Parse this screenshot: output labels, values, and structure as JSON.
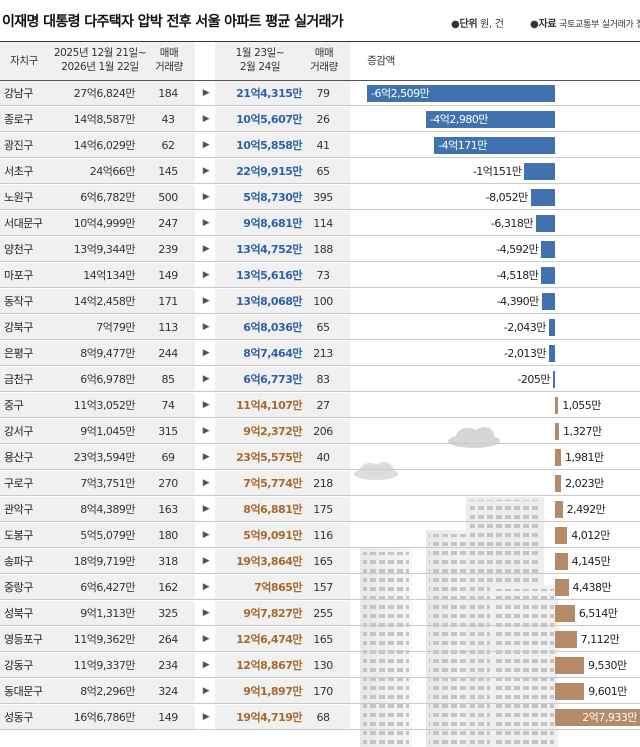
{
  "header": {
    "title": "이재명 대통령 다주택자 압박 전후 서울 아파트 평균 실거래가",
    "unit_label": "단위",
    "unit_value": "원, 건",
    "source_label": "자료",
    "source_value": "국토교통부 실거래가 정보"
  },
  "columns": {
    "district": "자치구",
    "before_line1": "2025년 12월 21일~",
    "before_line2": "2026년 1월 22일",
    "vol_line1": "매매",
    "vol_line2": "거래량",
    "after_line1": "1월 23일~",
    "after_line2": "2월 24일",
    "vol2_line1": "매매",
    "vol2_line2": "거래량",
    "change": "증감액"
  },
  "colors": {
    "negative": "#3f72ae",
    "positive": "#b58a68",
    "negative_text": "#2f62a5",
    "positive_text": "#a56a32"
  },
  "chart_data": {
    "type": "table",
    "title": "이재명 대통령 다주택자 압박 전후 서울 아파트 평균 실거래가",
    "unit": "원, 건",
    "arrow": "▶",
    "rows": [
      {
        "district": "강남구",
        "before": "27억6,824만",
        "vol_before": "184",
        "after": "21억4,315만",
        "vol_after": "79",
        "change": "-6억2,509만",
        "change_value": -62509
      },
      {
        "district": "종로구",
        "before": "14억8,587만",
        "vol_before": "43",
        "after": "10억5,607만",
        "vol_after": "26",
        "change": "-4억2,980만",
        "change_value": -42980
      },
      {
        "district": "광진구",
        "before": "14억6,029만",
        "vol_before": "62",
        "after": "10억5,858만",
        "vol_after": "41",
        "change": "-4억171만",
        "change_value": -40171
      },
      {
        "district": "서초구",
        "before": "24억66만",
        "vol_before": "145",
        "after": "22억9,915만",
        "vol_after": "65",
        "change": "-1억151만",
        "change_value": -10151
      },
      {
        "district": "노원구",
        "before": "6억6,782만",
        "vol_before": "500",
        "after": "5억8,730만",
        "vol_after": "395",
        "change": "-8,052만",
        "change_value": -8052
      },
      {
        "district": "서대문구",
        "before": "10억4,999만",
        "vol_before": "247",
        "after": "9억8,681만",
        "vol_after": "114",
        "change": "-6,318만",
        "change_value": -6318
      },
      {
        "district": "양천구",
        "before": "13억9,344만",
        "vol_before": "239",
        "after": "13억4,752만",
        "vol_after": "188",
        "change": "-4,592만",
        "change_value": -4592
      },
      {
        "district": "마포구",
        "before": "14억134만",
        "vol_before": "149",
        "after": "13억5,616만",
        "vol_after": "73",
        "change": "-4,518만",
        "change_value": -4518
      },
      {
        "district": "동작구",
        "before": "14억2,458만",
        "vol_before": "171",
        "after": "13억8,068만",
        "vol_after": "100",
        "change": "-4,390만",
        "change_value": -4390
      },
      {
        "district": "강북구",
        "before": "7억79만",
        "vol_before": "113",
        "after": "6억8,036만",
        "vol_after": "65",
        "change": "-2,043만",
        "change_value": -2043
      },
      {
        "district": "은평구",
        "before": "8억9,477만",
        "vol_before": "244",
        "after": "8억7,464만",
        "vol_after": "213",
        "change": "-2,013만",
        "change_value": -2013
      },
      {
        "district": "금천구",
        "before": "6억6,978만",
        "vol_before": "85",
        "after": "6억6,773만",
        "vol_after": "83",
        "change": "-205만",
        "change_value": -205
      },
      {
        "district": "중구",
        "before": "11억3,052만",
        "vol_before": "74",
        "after": "11억4,107만",
        "vol_after": "27",
        "change": "1,055만",
        "change_value": 1055
      },
      {
        "district": "강서구",
        "before": "9억1,045만",
        "vol_before": "315",
        "after": "9억2,372만",
        "vol_after": "206",
        "change": "1,327만",
        "change_value": 1327
      },
      {
        "district": "용산구",
        "before": "23억3,594만",
        "vol_before": "69",
        "after": "23억5,575만",
        "vol_after": "40",
        "change": "1,981만",
        "change_value": 1981
      },
      {
        "district": "구로구",
        "before": "7억3,751만",
        "vol_before": "270",
        "after": "7억5,774만",
        "vol_after": "218",
        "change": "2,023만",
        "change_value": 2023
      },
      {
        "district": "관악구",
        "before": "8억4,389만",
        "vol_before": "163",
        "after": "8억6,881만",
        "vol_after": "175",
        "change": "2,492만",
        "change_value": 2492
      },
      {
        "district": "도봉구",
        "before": "5억5,079만",
        "vol_before": "180",
        "after": "5억9,091만",
        "vol_after": "116",
        "change": "4,012만",
        "change_value": 4012
      },
      {
        "district": "송파구",
        "before": "18억9,719만",
        "vol_before": "318",
        "after": "19억3,864만",
        "vol_after": "165",
        "change": "4,145만",
        "change_value": 4145
      },
      {
        "district": "중랑구",
        "before": "6억6,427만",
        "vol_before": "162",
        "after": "7억865만",
        "vol_after": "157",
        "change": "4,438만",
        "change_value": 4438
      },
      {
        "district": "성북구",
        "before": "9억1,313만",
        "vol_before": "325",
        "after": "9억7,827만",
        "vol_after": "255",
        "change": "6,514만",
        "change_value": 6514
      },
      {
        "district": "영등포구",
        "before": "11억9,362만",
        "vol_before": "264",
        "after": "12억6,474만",
        "vol_after": "165",
        "change": "7,112만",
        "change_value": 7112
      },
      {
        "district": "강동구",
        "before": "11억9,337만",
        "vol_before": "234",
        "after": "12억8,867만",
        "vol_after": "130",
        "change": "9,530만",
        "change_value": 9530
      },
      {
        "district": "동대문구",
        "before": "8억2,296만",
        "vol_before": "324",
        "after": "9억1,897만",
        "vol_after": "170",
        "change": "9,601만",
        "change_value": 9601
      },
      {
        "district": "성동구",
        "before": "16억6,786만",
        "vol_before": "149",
        "after": "19억4,719만",
        "vol_after": "68",
        "change": "2억7,933만",
        "change_value": 27933
      }
    ]
  }
}
